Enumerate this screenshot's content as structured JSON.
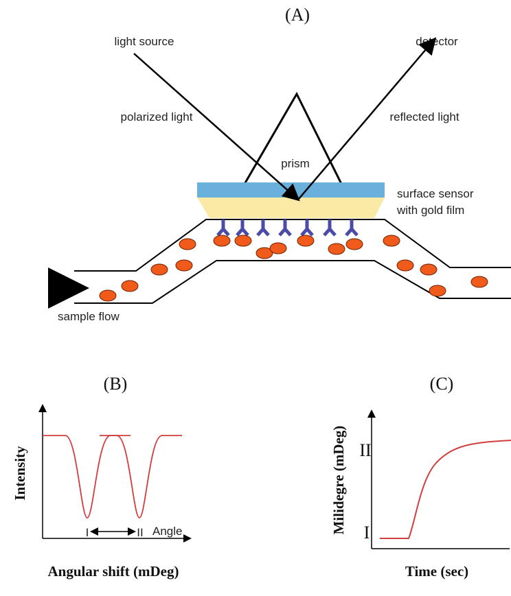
{
  "panel_a": {
    "label": "(A)",
    "light_source": "light source",
    "detector": "detector",
    "polarized_light": "polarized light",
    "reflected_light": "reflected light",
    "prism": "prism",
    "sensor_line1": "surface sensor",
    "sensor_line2": "with gold film",
    "sample_flow": "sample flow"
  },
  "panel_b": {
    "label": "(B)",
    "y_axis": "Intensity",
    "angle": "Angle",
    "mark_1": "I",
    "mark_2": "II",
    "x_axis": "Angular shift (mDeg)"
  },
  "panel_c": {
    "label": "(C)",
    "y_axis": "Milidegre (mDeg)",
    "mark_high": "II",
    "mark_low": "I",
    "x_axis": "Time (sec)"
  }
}
